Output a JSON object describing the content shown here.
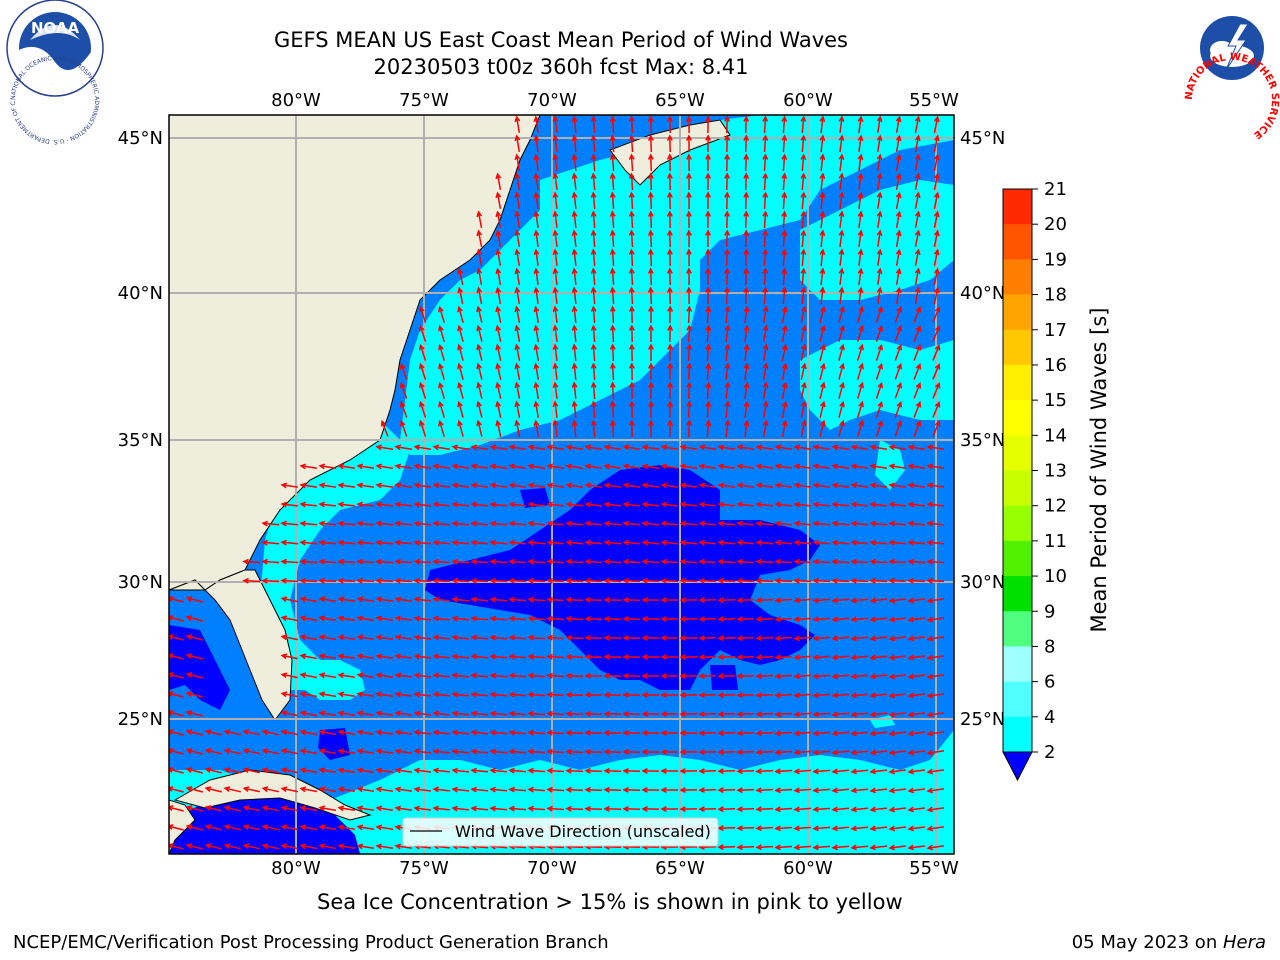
{
  "title": {
    "line1": "GEFS MEAN US East Coast Mean Period of Wind Waves",
    "line2": "20230503 t00z 360h fcst   Max: 8.41"
  },
  "map": {
    "lon_ticks": [
      "80°W",
      "75°W",
      "70°W",
      "65°W",
      "60°W",
      "55°W"
    ],
    "lat_ticks": [
      "45°N",
      "40°N",
      "35°N",
      "30°N",
      "25°N"
    ],
    "legend_label": "Wind Wave Direction (unscaled)",
    "colors": {
      "land": "#efeedc",
      "grid": "#b0b0b0",
      "arrow": "#ff0000",
      "coast": "#000000"
    }
  },
  "colorbar": {
    "label": "Mean Period of Wind Waves [s]",
    "ticks": [
      "21",
      "20",
      "19",
      "18",
      "17",
      "16",
      "15",
      "14",
      "13",
      "12",
      "11",
      "10",
      "9",
      "8",
      "6",
      "4",
      "2"
    ],
    "colors": [
      "#ff0000",
      "#ff2a00",
      "#ff5400",
      "#ff8000",
      "#ffa500",
      "#ffc800",
      "#ffee00",
      "#ffff00",
      "#e6ff00",
      "#c8ff00",
      "#96ff00",
      "#50f000",
      "#00e000",
      "#50ff80",
      "#a0ffff",
      "#50ffff",
      "#00ffff",
      "#0080ff",
      "#0000ff"
    ]
  },
  "caption": "Sea Ice Concentration > 15% is shown in pink to yellow",
  "footer": {
    "left": "NCEP/EMC/Verification Post Processing Product Generation Branch",
    "right_date": "05 May 2023 on ",
    "right_host": "Hera"
  },
  "logos": {
    "noaa": "NOAA",
    "noaa_ring": "NATIONAL OCEANIC AND ATMOSPHERIC ADMINISTRATION · U.S. DEPARTMENT OF COMMERCE",
    "nws_ring": "NATIONAL WEATHER SERVICE"
  }
}
